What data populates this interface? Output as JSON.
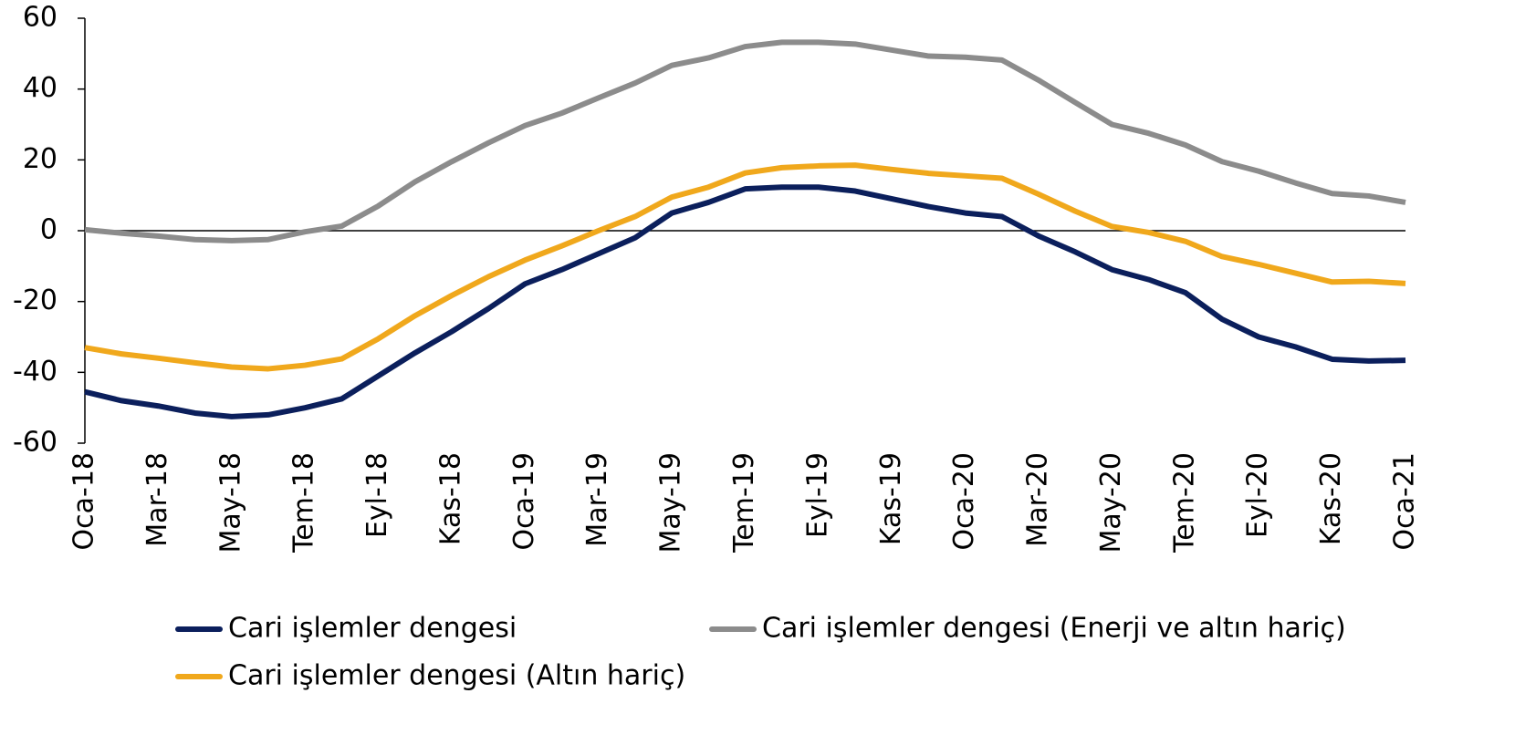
{
  "chart_data": {
    "type": "line",
    "categories": [
      "Oca-18",
      null,
      "Mar-18",
      null,
      "May-18",
      null,
      "Tem-18",
      null,
      "Eyl-18",
      null,
      "Kas-18",
      null,
      "Oca-19",
      null,
      "Mar-19",
      null,
      "May-19",
      null,
      "Tem-19",
      null,
      "Eyl-19",
      null,
      "Kas-19",
      null,
      "Oca-20",
      null,
      "Mar-20",
      null,
      "May-20",
      null,
      "Tem-20",
      null,
      "Eyl-20",
      null,
      "Kas-20",
      null,
      "Oca-21"
    ],
    "ylim": [
      -60,
      60
    ],
    "yticks": [
      -60,
      -40,
      -20,
      0,
      20,
      40,
      60
    ],
    "series": [
      {
        "name": "Cari işlemler dengesi",
        "color": "#0b1f5c",
        "values": [
          -45.5,
          -48,
          -49.5,
          -51.5,
          -52.5,
          -52,
          -50,
          -47.5,
          -41,
          -34.5,
          -28.5,
          -22,
          -15,
          -11,
          -6.5,
          -2,
          5,
          8,
          11.8,
          12.3,
          12.3,
          11.2,
          9,
          6.8,
          5,
          4,
          -1.5,
          -6,
          -11,
          -13.8,
          -17.5,
          -25,
          -30,
          -32.8,
          -36.3,
          -36.8,
          -36.6
        ]
      },
      {
        "name": "Cari işlemler dengesi (Enerji ve altın hariç)",
        "color": "#8c8c8c",
        "values": [
          0.3,
          -0.7,
          -1.5,
          -2.5,
          -2.8,
          -2.5,
          -0.3,
          1.3,
          7,
          13.8,
          19.5,
          24.8,
          29.7,
          33.2,
          37.5,
          41.7,
          46.7,
          48.8,
          52,
          53.2,
          53.2,
          52.7,
          51,
          49.3,
          49,
          48.2,
          42.5,
          36.2,
          30,
          27.5,
          24.2,
          19.5,
          16.8,
          13.5,
          10.5,
          9.8,
          8
        ]
      },
      {
        "name": "Cari işlemler dengesi (Altın hariç)",
        "color": "#f0a81c",
        "values": [
          -33,
          -34.8,
          -36,
          -37.3,
          -38.5,
          -39,
          -38,
          -36.2,
          -30.5,
          -24,
          -18.3,
          -13,
          -8.3,
          -4.3,
          0,
          4,
          9.5,
          12.3,
          16.3,
          17.8,
          18.3,
          18.5,
          17.3,
          16.2,
          15.5,
          14.8,
          10.3,
          5.5,
          1.2,
          -0.5,
          -3,
          -7.3,
          -9.5,
          -12,
          -14.5,
          -14.3,
          -14.9
        ]
      }
    ]
  }
}
